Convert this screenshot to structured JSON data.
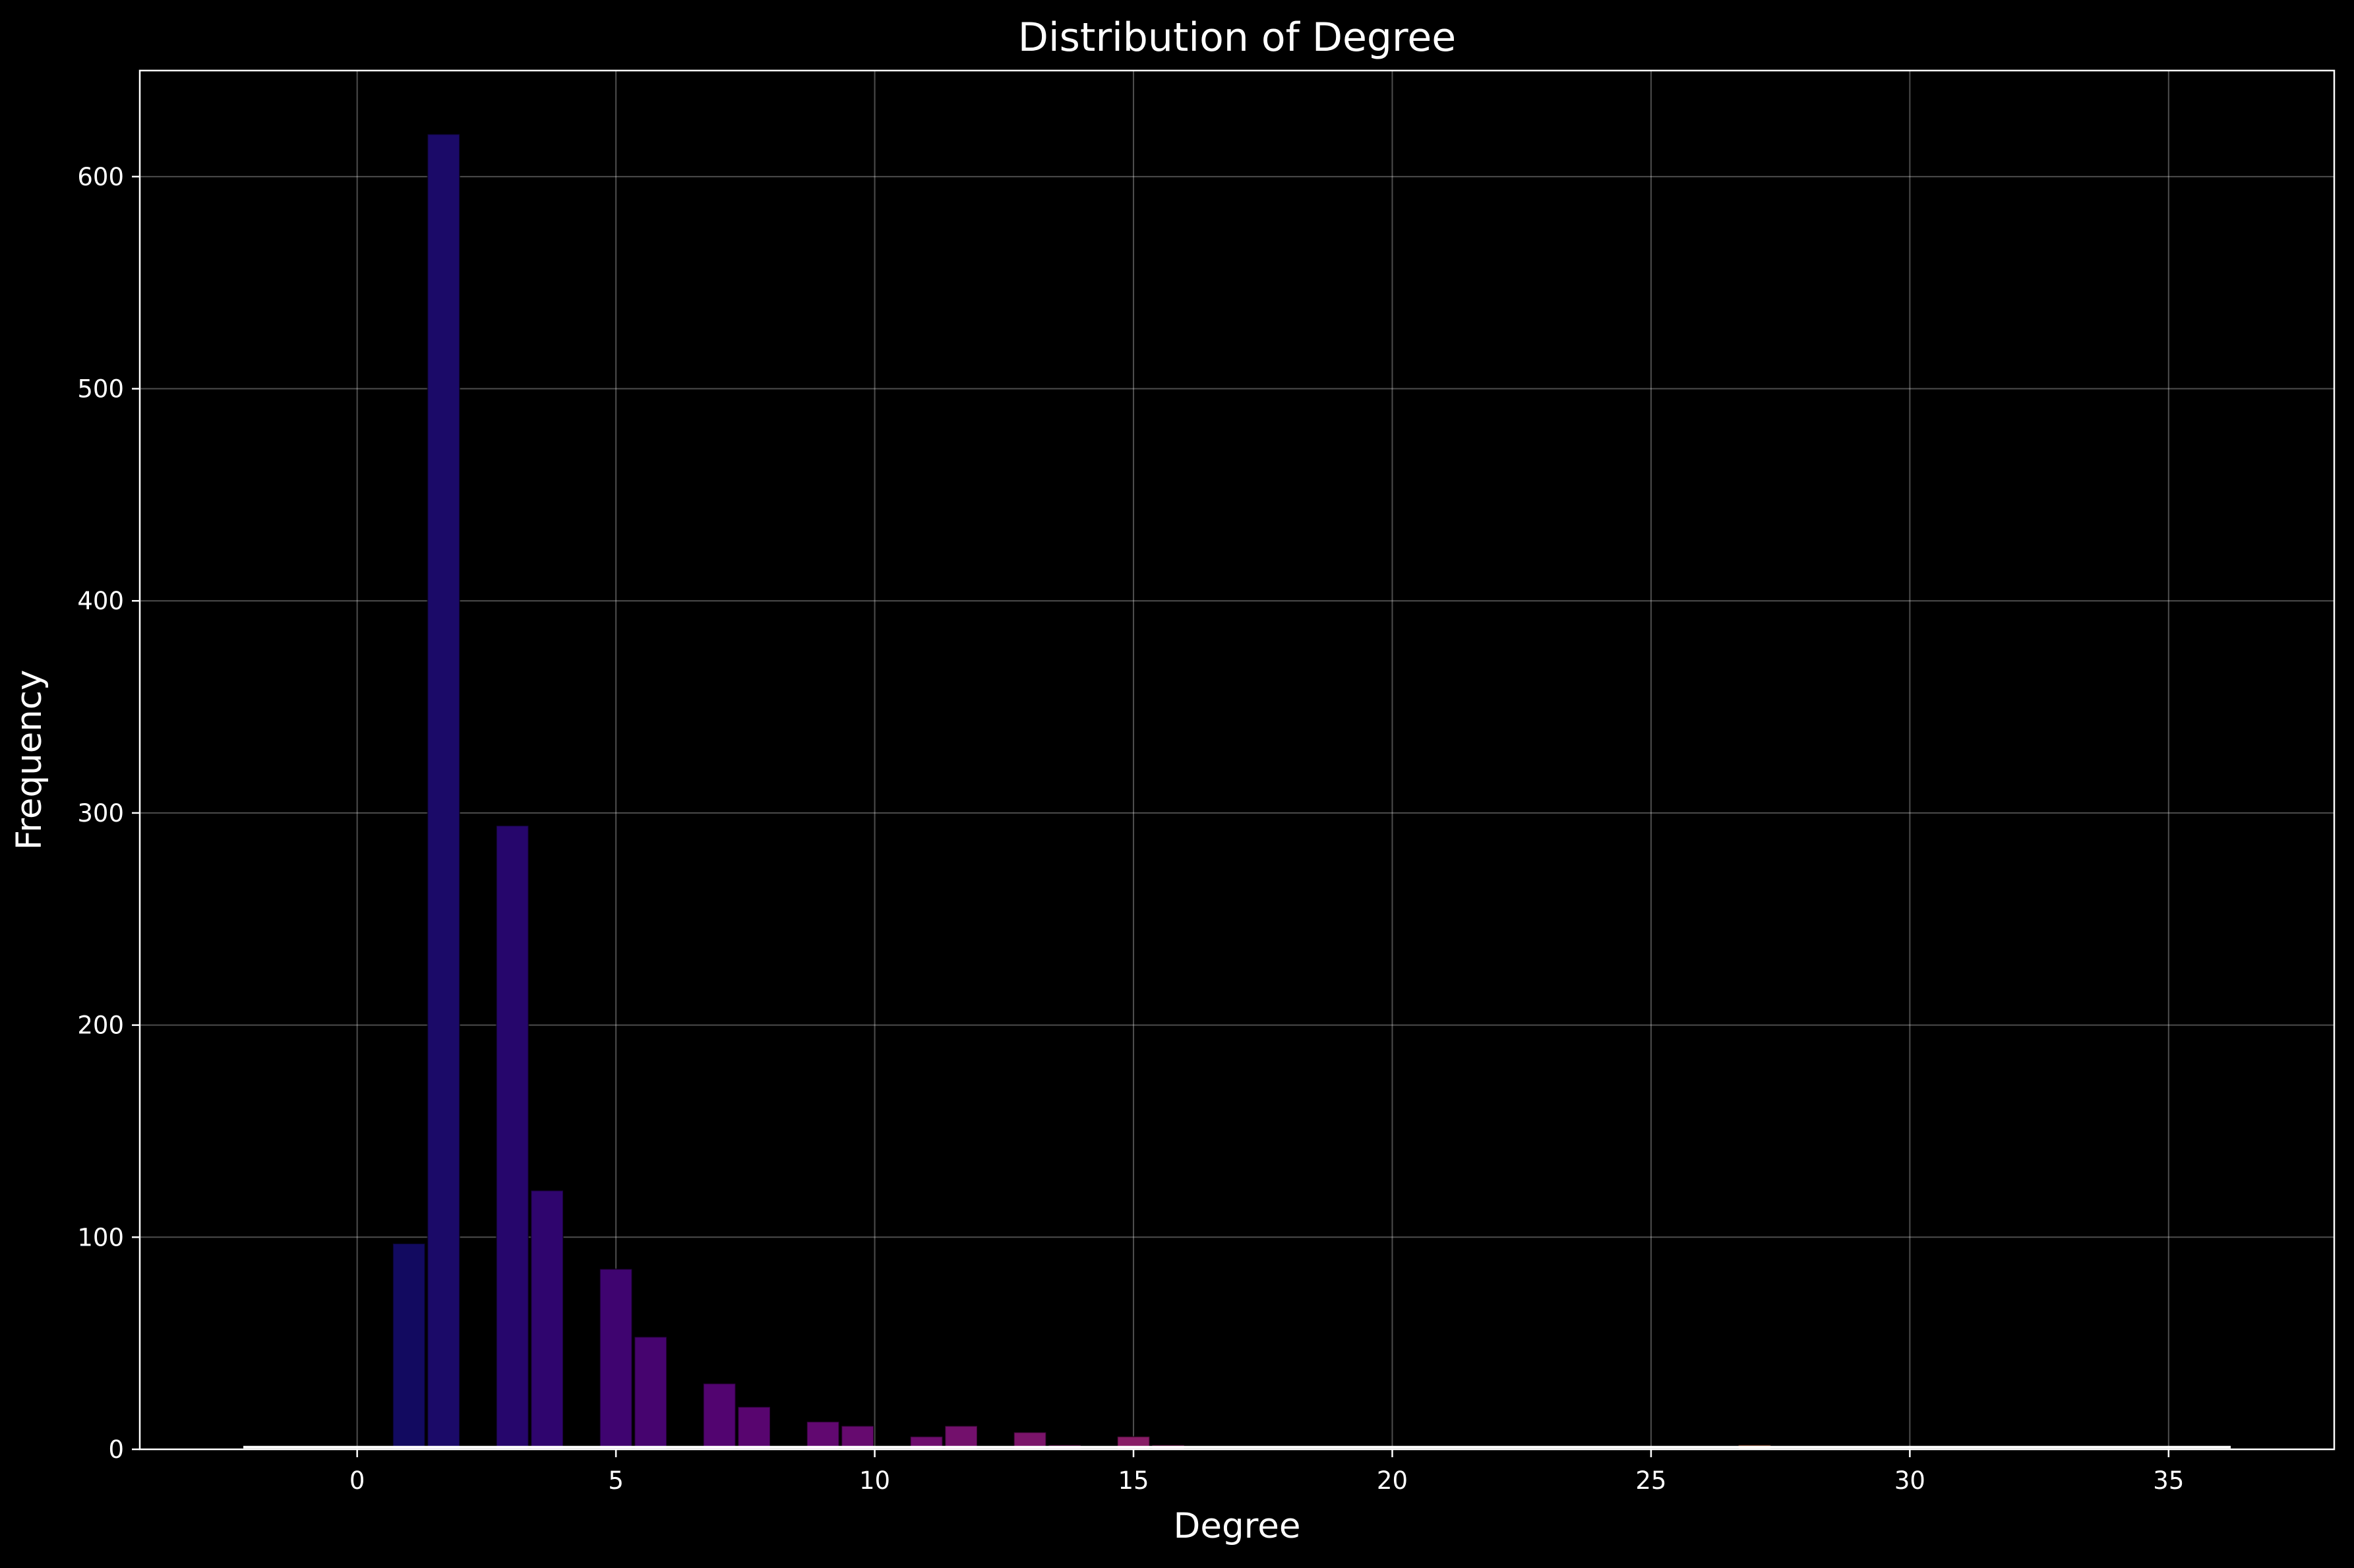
{
  "chart_data": {
    "type": "bar",
    "title": "Distribution of Degree",
    "xlabel": "Degree",
    "ylabel": "Frequency",
    "xlim": [
      -4.2,
      38.2
    ],
    "ylim": [
      0,
      650
    ],
    "xticks": [
      0,
      5,
      10,
      15,
      20,
      25,
      30,
      35
    ],
    "yticks": [
      0,
      100,
      200,
      300,
      400,
      500,
      600
    ],
    "grid": true,
    "background_color": "#000000",
    "foreground_color": "#ffffff",
    "bar_width": 0.62,
    "bars": [
      {
        "x": 1.0,
        "value": 97,
        "color": "#120a60"
      },
      {
        "x": 1.67,
        "value": 620,
        "color": "#1b0a68"
      },
      {
        "x": 3.0,
        "value": 294,
        "color": "#26066c"
      },
      {
        "x": 3.67,
        "value": 122,
        "color": "#2f056e"
      },
      {
        "x": 5.0,
        "value": 85,
        "color": "#3f0470"
      },
      {
        "x": 5.67,
        "value": 53,
        "color": "#46046f"
      },
      {
        "x": 7.0,
        "value": 31,
        "color": "#520470"
      },
      {
        "x": 7.67,
        "value": 20,
        "color": "#58056f"
      },
      {
        "x": 9.0,
        "value": 13,
        "color": "#610870"
      },
      {
        "x": 9.67,
        "value": 11,
        "color": "#660a6f"
      },
      {
        "x": 11.0,
        "value": 6,
        "color": "#6e0d6e"
      },
      {
        "x": 11.67,
        "value": 11,
        "color": "#73106c"
      },
      {
        "x": 13.0,
        "value": 8,
        "color": "#7b146a"
      },
      {
        "x": 13.67,
        "value": 2,
        "color": "#7f1768"
      },
      {
        "x": 15.0,
        "value": 6,
        "color": "#881c66"
      },
      {
        "x": 15.67,
        "value": 2,
        "color": "#8c1f64"
      },
      {
        "x": 27.0,
        "value": 2,
        "color": "#c8734a"
      }
    ],
    "kde_baseline": {
      "x_start": -2.2,
      "x_end": 36.2,
      "value": 1,
      "color": "#ffffff"
    }
  }
}
